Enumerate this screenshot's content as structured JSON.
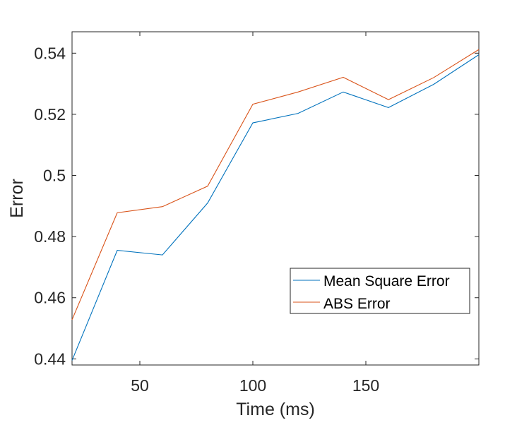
{
  "chart_data": {
    "type": "line",
    "title": "",
    "xlabel": "Time (ms)",
    "ylabel": "Error",
    "xlim": [
      20,
      200
    ],
    "ylim": [
      0.438,
      0.547
    ],
    "xticks": [
      50,
      100,
      150
    ],
    "xtick_labels": [
      "50",
      "100",
      "150"
    ],
    "yticks": [
      0.44,
      0.46,
      0.48,
      0.5,
      0.52,
      0.54
    ],
    "ytick_labels": [
      "0.44",
      "0.46",
      "0.48",
      "0.5",
      "0.52",
      "0.54"
    ],
    "grid": false,
    "legend_position": "lower-right",
    "x": [
      20,
      40,
      60,
      80,
      100,
      120,
      140,
      160,
      180,
      200
    ],
    "series": [
      {
        "name": "Mean Square Error",
        "color": "#0072BD",
        "values": [
          0.4395,
          0.4755,
          0.474,
          0.491,
          0.5172,
          0.5203,
          0.5273,
          0.5222,
          0.5298,
          0.5395
        ]
      },
      {
        "name": "ABS Error",
        "color": "#D95319",
        "values": [
          0.4528,
          0.4878,
          0.4898,
          0.4965,
          0.5233,
          0.5273,
          0.5321,
          0.5248,
          0.532,
          0.5412
        ]
      }
    ]
  }
}
